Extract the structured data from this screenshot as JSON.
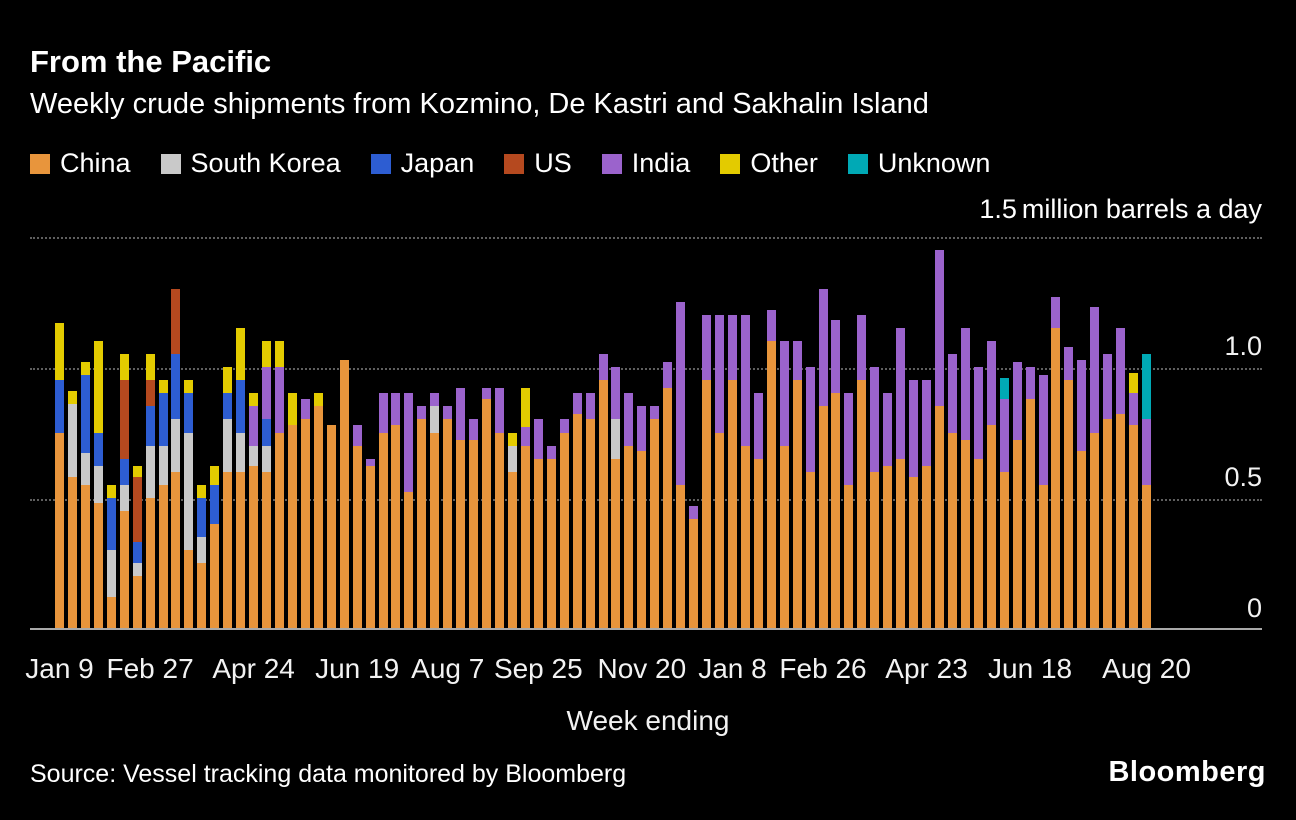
{
  "header": {
    "title": "From the Pacific",
    "subtitle": "Weekly crude shipments from Kozmino, De Kastri and Sakhalin Island"
  },
  "axis": {
    "unit_value": "1.5",
    "unit_text": "million barrels a day",
    "y_ticks": [
      "1.0",
      "0.5",
      "0"
    ],
    "x_title": "Week ending"
  },
  "footer": {
    "source": "Source: Vessel tracking data monitored by Bloomberg",
    "logo": "Bloomberg"
  },
  "chart_data": {
    "type": "bar",
    "stacked": true,
    "title": "From the Pacific",
    "subtitle": "Weekly crude shipments from Kozmino, De Kastri and Sakhalin Island",
    "ylabel": "million barrels a day",
    "xlabel": "Week ending",
    "ylim": [
      0,
      1.5
    ],
    "y_gridlines": [
      1.5,
      1.0,
      0.5,
      0
    ],
    "grid_style": "dotted-horizontal",
    "legend_position": "top",
    "x_ticks": [
      {
        "label": "Jan 9",
        "index": 0
      },
      {
        "label": "Feb 27",
        "index": 7
      },
      {
        "label": "Apr 24",
        "index": 15
      },
      {
        "label": "Jun 19",
        "index": 23
      },
      {
        "label": "Aug 7",
        "index": 30
      },
      {
        "label": "Sep 25",
        "index": 37
      },
      {
        "label": "Nov 20",
        "index": 45
      },
      {
        "label": "Jan 8",
        "index": 52
      },
      {
        "label": "Feb 26",
        "index": 59
      },
      {
        "label": "Apr 23",
        "index": 67
      },
      {
        "label": "Jun 18",
        "index": 75
      },
      {
        "label": "Aug 20",
        "index": 84
      }
    ],
    "series": [
      {
        "name": "China",
        "color": "#E8953C",
        "values": [
          0.75,
          0.58,
          0.55,
          0.48,
          0.12,
          0.45,
          0.2,
          0.5,
          0.55,
          0.6,
          0.3,
          0.25,
          0.4,
          0.6,
          0.6,
          0.62,
          0.6,
          0.75,
          0.78,
          0.8,
          0.85,
          0.78,
          1.03,
          0.7,
          0.62,
          0.75,
          0.78,
          0.52,
          0.8,
          0.75,
          0.8,
          0.72,
          0.72,
          0.88,
          0.75,
          0.6,
          0.7,
          0.65,
          0.65,
          0.75,
          0.82,
          0.8,
          0.95,
          0.65,
          0.7,
          0.68,
          0.8,
          0.92,
          0.55,
          0.42,
          0.95,
          0.75,
          0.95,
          0.7,
          0.65,
          1.1,
          0.7,
          0.95,
          0.6,
          0.85,
          0.9,
          0.55,
          0.95,
          0.6,
          0.62,
          0.65,
          0.58,
          0.62,
          0.85,
          0.75,
          0.72,
          0.65,
          0.78,
          0.6,
          0.72,
          0.88,
          0.55,
          1.15,
          0.95,
          0.68,
          0.75,
          0.8,
          0.82,
          0.78,
          0.55
        ]
      },
      {
        "name": "South Korea",
        "color": "#C9C9C9",
        "values": [
          0,
          0.28,
          0.12,
          0.14,
          0.18,
          0.1,
          0.05,
          0.2,
          0.15,
          0.2,
          0.45,
          0.1,
          0,
          0.2,
          0.15,
          0.08,
          0.1,
          0,
          0,
          0,
          0,
          0,
          0,
          0,
          0,
          0,
          0,
          0,
          0,
          0.1,
          0,
          0,
          0,
          0,
          0,
          0.1,
          0,
          0,
          0,
          0,
          0,
          0,
          0,
          0.15,
          0,
          0,
          0,
          0,
          0,
          0,
          0,
          0,
          0,
          0,
          0,
          0,
          0,
          0,
          0,
          0,
          0,
          0,
          0,
          0,
          0,
          0,
          0,
          0,
          0,
          0,
          0,
          0,
          0,
          0,
          0,
          0,
          0,
          0,
          0,
          0,
          0,
          0,
          0,
          0,
          0
        ]
      },
      {
        "name": "Japan",
        "color": "#2D5DD2",
        "values": [
          0.2,
          0,
          0.3,
          0.13,
          0.2,
          0.1,
          0.08,
          0.15,
          0.2,
          0.25,
          0.15,
          0.15,
          0.15,
          0.1,
          0.2,
          0,
          0.1,
          0,
          0,
          0,
          0,
          0,
          0,
          0,
          0,
          0,
          0,
          0,
          0,
          0,
          0,
          0,
          0,
          0,
          0,
          0,
          0,
          0,
          0,
          0,
          0,
          0,
          0,
          0,
          0,
          0,
          0,
          0,
          0,
          0,
          0,
          0,
          0,
          0,
          0,
          0,
          0,
          0,
          0,
          0,
          0,
          0,
          0,
          0,
          0,
          0,
          0,
          0,
          0,
          0,
          0,
          0,
          0,
          0,
          0,
          0,
          0,
          0,
          0,
          0,
          0,
          0,
          0,
          0,
          0
        ]
      },
      {
        "name": "US",
        "color": "#B5491F",
        "values": [
          0,
          0,
          0,
          0,
          0,
          0.3,
          0.25,
          0.1,
          0,
          0.25,
          0,
          0,
          0,
          0,
          0,
          0,
          0,
          0,
          0,
          0,
          0,
          0,
          0,
          0,
          0,
          0,
          0,
          0,
          0,
          0,
          0,
          0,
          0,
          0,
          0,
          0,
          0,
          0,
          0,
          0,
          0,
          0,
          0,
          0,
          0,
          0,
          0,
          0,
          0,
          0,
          0,
          0,
          0,
          0,
          0,
          0,
          0,
          0,
          0,
          0,
          0,
          0,
          0,
          0,
          0,
          0,
          0,
          0,
          0,
          0,
          0,
          0,
          0,
          0,
          0,
          0,
          0,
          0,
          0,
          0,
          0,
          0,
          0,
          0,
          0
        ]
      },
      {
        "name": "India",
        "color": "#9B63CC",
        "values": [
          0,
          0,
          0,
          0,
          0,
          0,
          0,
          0,
          0,
          0,
          0,
          0,
          0,
          0,
          0,
          0.15,
          0.2,
          0.25,
          0,
          0.08,
          0,
          0,
          0,
          0.08,
          0.03,
          0.15,
          0.12,
          0.38,
          0.05,
          0.05,
          0.05,
          0.2,
          0.08,
          0.04,
          0.17,
          0,
          0.07,
          0.15,
          0.05,
          0.05,
          0.08,
          0.1,
          0.1,
          0.2,
          0.2,
          0.17,
          0.05,
          0.1,
          0.7,
          0.05,
          0.25,
          0.45,
          0.25,
          0.5,
          0.25,
          0.12,
          0.4,
          0.15,
          0.4,
          0.45,
          0.28,
          0.35,
          0.25,
          0.4,
          0.28,
          0.5,
          0.37,
          0.33,
          0.6,
          0.3,
          0.43,
          0.35,
          0.32,
          0.28,
          0.3,
          0.12,
          0.42,
          0.12,
          0.13,
          0.35,
          0.48,
          0.25,
          0.33,
          0.12,
          0.25
        ]
      },
      {
        "name": "Other",
        "color": "#E3CB00",
        "values": [
          0.22,
          0.05,
          0.05,
          0.35,
          0.05,
          0.1,
          0.04,
          0.1,
          0.05,
          0,
          0.05,
          0.05,
          0.07,
          0.1,
          0.2,
          0.05,
          0.1,
          0.1,
          0.12,
          0,
          0.05,
          0,
          0,
          0,
          0,
          0,
          0,
          0,
          0,
          0,
          0,
          0,
          0,
          0,
          0,
          0.05,
          0.15,
          0,
          0,
          0,
          0,
          0,
          0,
          0,
          0,
          0,
          0,
          0,
          0,
          0,
          0,
          0,
          0,
          0,
          0,
          0,
          0,
          0,
          0,
          0,
          0,
          0,
          0,
          0,
          0,
          0,
          0,
          0,
          0,
          0,
          0,
          0,
          0,
          0,
          0,
          0,
          0,
          0,
          0,
          0,
          0,
          0,
          0,
          0.08,
          0
        ]
      },
      {
        "name": "Unknown",
        "color": "#00A9B5",
        "values": [
          0,
          0,
          0,
          0,
          0,
          0,
          0,
          0,
          0,
          0,
          0,
          0,
          0,
          0,
          0,
          0,
          0,
          0,
          0,
          0,
          0,
          0,
          0,
          0,
          0,
          0,
          0,
          0,
          0,
          0,
          0,
          0,
          0,
          0,
          0,
          0,
          0,
          0,
          0,
          0,
          0,
          0,
          0,
          0,
          0,
          0,
          0,
          0,
          0,
          0,
          0,
          0,
          0,
          0,
          0,
          0,
          0,
          0,
          0,
          0,
          0,
          0,
          0,
          0,
          0,
          0,
          0,
          0,
          0,
          0,
          0,
          0,
          0,
          0.08,
          0,
          0,
          0,
          0,
          0,
          0,
          0,
          0,
          0,
          0,
          0.25
        ]
      }
    ]
  }
}
